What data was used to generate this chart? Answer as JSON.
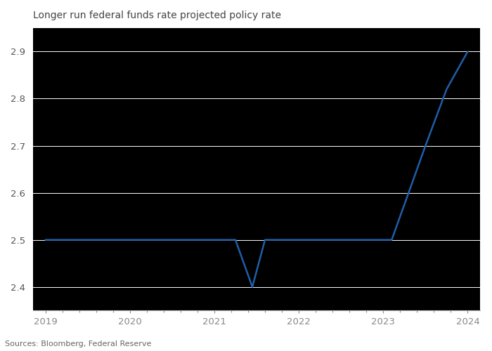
{
  "title": "Longer run federal funds rate projected policy rate",
  "source": "Sources: Bloomberg, Federal Reserve",
  "line_color": "#1f5ea8",
  "plot_bg_color": "#000000",
  "fig_bg_color": "#ffffff",
  "grid_color": "#ffffff",
  "axis_color": "#888888",
  "text_color": "#555555",
  "title_color": "#444444",
  "source_color": "#666666",
  "x_values": [
    2019.0,
    2019.25,
    2019.5,
    2019.75,
    2020.0,
    2020.25,
    2020.5,
    2020.75,
    2021.0,
    2021.25,
    2021.45,
    2021.6,
    2021.75,
    2022.0,
    2022.25,
    2022.5,
    2022.75,
    2023.0,
    2023.1,
    2023.3,
    2023.5,
    2023.75,
    2024.0
  ],
  "y_values": [
    2.5,
    2.5,
    2.5,
    2.5,
    2.5,
    2.5,
    2.5,
    2.5,
    2.5,
    2.5,
    2.4,
    2.5,
    2.5,
    2.5,
    2.5,
    2.5,
    2.5,
    2.5,
    2.5,
    2.6,
    2.7,
    2.82,
    2.9
  ],
  "xlim": [
    2018.85,
    2024.15
  ],
  "ylim": [
    2.35,
    2.95
  ],
  "yticks": [
    2.4,
    2.5,
    2.6,
    2.7,
    2.8,
    2.9
  ],
  "xticks": [
    2019,
    2020,
    2021,
    2022,
    2023,
    2024
  ],
  "line_width": 1.8,
  "tick_color": "#888888",
  "spine_color": "#aaaaaa"
}
